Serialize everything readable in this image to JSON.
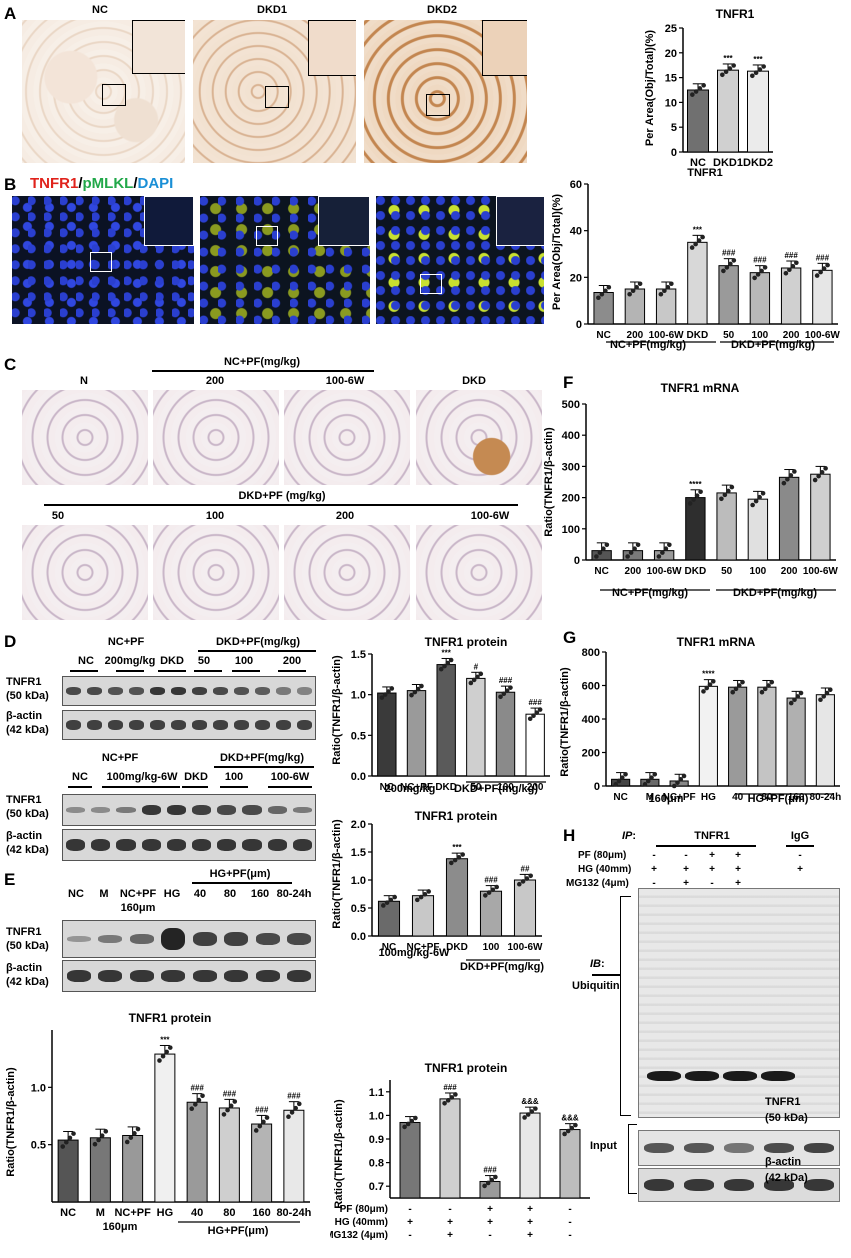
{
  "panels": {
    "A": {
      "letter": "A",
      "image_labels": [
        "NC",
        "DKD1",
        "DKD2"
      ],
      "chart_data": {
        "type": "bar",
        "title": "TNFR1",
        "ylabel": "Per Area(Obj/Total)(%)",
        "categories": [
          "NC",
          "DKD1",
          "DKD2"
        ],
        "values": [
          12.5,
          16.5,
          16.3
        ],
        "ylim": [
          0,
          25
        ],
        "yticks": [
          0,
          5,
          10,
          15,
          20,
          25
        ],
        "significance": [
          "",
          "***",
          "***"
        ],
        "bar_colors": [
          "#707070",
          "#d0d0d0",
          "#ebebeb"
        ],
        "x_group_label": "TNFR1"
      }
    },
    "B": {
      "letter": "B",
      "stain_title": {
        "tnfr1": "TNFR1",
        "sep1": "/",
        "pmlkl": "pMLKL",
        "sep2": "/",
        "dapi": "DAPI"
      },
      "colors": {
        "tnfr1": "#e0231c",
        "pmlkl": "#22a84a",
        "dapi": "#1a8fd6"
      },
      "chart_data": {
        "type": "bar",
        "ylabel": "Per Area(Obj/Total)(%)",
        "categories": [
          "NC",
          "200",
          "100-6W",
          "DKD",
          "50",
          "100",
          "200",
          "100-6W"
        ],
        "values": [
          13.5,
          15,
          15,
          35,
          25,
          22,
          24,
          23
        ],
        "ylim": [
          0,
          60
        ],
        "yticks": [
          0,
          20,
          40,
          60
        ],
        "significance": [
          "",
          "",
          "",
          "***",
          "###",
          "###",
          "###",
          "###"
        ],
        "bar_colors": [
          "#8c8c8c",
          "#b4b4b4",
          "#c8c8c8",
          "#d8d8d8",
          "#9a9a9a",
          "#b8b8b8",
          "#d0d0d0",
          "#e6e6e6"
        ],
        "group_labels": [
          "NC+PF(mg/kg)",
          "DKD+PF(mg/kg)"
        ]
      }
    },
    "C": {
      "letter": "C",
      "header_top": "NC+PF(mg/kg)",
      "row1_labels": [
        "N",
        "200",
        "100-6W",
        "DKD"
      ],
      "header_bottom": "DKD+PF (mg/kg)",
      "row2_labels": [
        "50",
        "100",
        "200",
        "100-6W"
      ]
    },
    "F": {
      "letter": "F",
      "chart_data": {
        "type": "bar",
        "title": "TNFR1 mRNA",
        "ylabel": "Ratio(TNFR1/β-actin)",
        "categories": [
          "NC",
          "200",
          "100-6W",
          "DKD",
          "50",
          "100",
          "200",
          "100-6W"
        ],
        "values": [
          30,
          30,
          30,
          200,
          215,
          195,
          265,
          275
        ],
        "ylim": [
          0,
          500
        ],
        "yticks": [
          0,
          100,
          200,
          300,
          400,
          500
        ],
        "significance": [
          "",
          "",
          "",
          "****",
          "",
          "",
          "",
          ""
        ],
        "bar_colors": [
          "#555555",
          "#7a7a7a",
          "#9a9a9a",
          "#2e2e2e",
          "#bcbcbc",
          "#e0e0e0",
          "#8a8a8a",
          "#cfcfcf"
        ],
        "group_labels": [
          "NC+PF(mg/kg)",
          "DKD+PF(mg/kg)"
        ]
      }
    },
    "D": {
      "letter": "D",
      "blot1": {
        "header_top": [
          "NC+PF",
          "DKD+PF(mg/kg)"
        ],
        "lane_labels": [
          "NC",
          "200mg/kg",
          "DKD",
          "50",
          "100",
          "200"
        ],
        "rows": [
          {
            "name": "TNFR1",
            "kda": "(50 kDa)"
          },
          {
            "name": "β-actin",
            "kda": "(42 kDa)"
          }
        ]
      },
      "blot2": {
        "header_top": [
          "NC+PF",
          "DKD+PF(mg/kg)"
        ],
        "lane_labels": [
          "NC",
          "100mg/kg-6W",
          "DKD",
          "100",
          "100-6W"
        ],
        "rows": [
          {
            "name": "TNFR1",
            "kda": "(50 kDa)"
          },
          {
            "name": "β-actin",
            "kda": "(42 kDa)"
          }
        ]
      },
      "chart1": {
        "type": "bar",
        "title": "TNFR1 protein",
        "ylabel": "Ratio(TNFR1/β-actin)",
        "categories": [
          "NC",
          "NC+PF",
          "DKD",
          "50",
          "100",
          "200"
        ],
        "sub_label": "200mg/kg",
        "group_label": "DKD+PF(mg/kg)",
        "values": [
          1.02,
          1.05,
          1.37,
          1.2,
          1.03,
          0.76
        ],
        "ylim": [
          0,
          1.5
        ],
        "yticks": [
          0.0,
          0.5,
          1.0,
          1.5
        ],
        "significance": [
          "",
          "",
          "***",
          "#",
          "###",
          "###"
        ],
        "bar_colors": [
          "#3a3a3a",
          "#9a9a9a",
          "#5a5a5a",
          "#cfcfcf",
          "#8a8a8a",
          "#ffffff"
        ]
      },
      "chart2": {
        "type": "bar",
        "title": "TNFR1 protein",
        "ylabel": "Ratio(TNFR1/β-actin)",
        "categories": [
          "NC",
          "NC+PF",
          "DKD",
          "100",
          "100-6W"
        ],
        "sub_label": "100mg/kg-6W",
        "group_label": "DKD+PF(mg/kg)",
        "values": [
          0.62,
          0.72,
          1.38,
          0.8,
          1.0
        ],
        "ylim": [
          0,
          2.0
        ],
        "yticks": [
          0.0,
          0.5,
          1.0,
          1.5,
          2.0
        ],
        "significance": [
          "",
          "",
          "***",
          "###",
          "##"
        ],
        "bar_colors": [
          "#6a6a6a",
          "#c8c8c8",
          "#8c8c8c",
          "#a8a8a8",
          "#c8c8c8"
        ]
      }
    },
    "G": {
      "letter": "G",
      "chart_data": {
        "type": "bar",
        "title": "TNFR1 mRNA",
        "ylabel": "Ratio(TNFR1/β-actin)",
        "categories": [
          "NC",
          "M",
          "NC+PF",
          "HG",
          "40",
          "80",
          "160",
          "80-24h"
        ],
        "sub_label": "160μm",
        "group_label": "HG+PF(μm)",
        "values": [
          40,
          40,
          30,
          595,
          590,
          590,
          525,
          545
        ],
        "ylim": [
          0,
          800
        ],
        "yticks": [
          0,
          200,
          400,
          600,
          800
        ],
        "significance": [
          "",
          "",
          "",
          "****",
          "",
          "",
          "",
          ""
        ],
        "bar_colors": [
          "#444444",
          "#6a6a6a",
          "#888888",
          "#f2f2f2",
          "#9a9a9a",
          "#c4c4c4",
          "#b0b0b0",
          "#e6e6e6"
        ]
      }
    },
    "E": {
      "letter": "E",
      "blot": {
        "lane_labels": [
          "NC",
          "M",
          "NC+PF",
          "HG",
          "40",
          "80",
          "160",
          "80-24h"
        ],
        "sub_label": "160μm",
        "group_label": "HG+PF(μm)",
        "rows": [
          {
            "name": "TNFR1",
            "kda": "(50 kDa)"
          },
          {
            "name": "β-actin",
            "kda": "(42 kDa)"
          }
        ]
      },
      "chart_data": {
        "type": "bar",
        "title": "TNFR1 protein",
        "ylabel": "Ratio(TNFR1/β-actin)",
        "categories": [
          "NC",
          "M",
          "NC+PF",
          "HG",
          "40",
          "80",
          "160",
          "80-24h"
        ],
        "sub_label": "160μm",
        "group_label": "HG+PF(μm)",
        "values": [
          0.54,
          0.56,
          0.58,
          1.29,
          0.87,
          0.82,
          0.68,
          0.8
        ],
        "ylim": [
          0,
          1.5
        ],
        "yticks": [
          0.5,
          1.0
        ],
        "significance": [
          "",
          "",
          "",
          "***",
          "###",
          "###",
          "###",
          "###"
        ],
        "bar_colors": [
          "#555555",
          "#777777",
          "#999999",
          "#f0f0f0",
          "#9a9a9a",
          "#cfcfcf",
          "#b4b4b4",
          "#e8e8e8"
        ]
      }
    },
    "H": {
      "letter": "H",
      "ip_label": "IP",
      "ip_colon": ":",
      "ip_target": "TNFR1",
      "igg": "IgG",
      "treatments": [
        {
          "name": "PF (80μm)",
          "signs": [
            "-",
            "-",
            "+",
            "+",
            "-"
          ]
        },
        {
          "name": "HG (40mm)",
          "signs": [
            "+",
            "+",
            "+",
            "+",
            "+"
          ]
        },
        {
          "name": "MG132 (4μm)",
          "signs": [
            "-",
            "+",
            "-",
            "+",
            ""
          ]
        }
      ],
      "ib_label": "IB",
      "ib_colon": ":",
      "ib_target": "Ubiquitin",
      "side_tnfr1": "TNFR1",
      "side_kda1": "(50 kDa)",
      "input_label": "Input",
      "side_actin": "β-actin",
      "side_kda2": "(42 kDa)",
      "chart_data": {
        "type": "bar",
        "title": "TNFR1 protein",
        "ylabel": "Ratio(TNFR1/β-actin)",
        "categories": [
          "1",
          "2",
          "3",
          "4",
          "5"
        ],
        "values": [
          0.97,
          1.07,
          0.72,
          1.01,
          0.94
        ],
        "ylim": [
          0.65,
          1.15
        ],
        "yticks": [
          0.7,
          0.8,
          0.9,
          1.0,
          1.1
        ],
        "significance": [
          "",
          "###",
          "###",
          "&&&",
          "&&&"
        ],
        "bar_colors": [
          "#777777",
          "#cfcfcf",
          "#9a9a9a",
          "#e8e8e8",
          "#bdbdbd"
        ],
        "treatments": [
          {
            "name": "PF (80μm)",
            "signs": [
              "-",
              "-",
              "+",
              "+",
              "-"
            ]
          },
          {
            "name": "HG (40mm)",
            "signs": [
              "+",
              "+",
              "+",
              "+",
              "-"
            ]
          },
          {
            "name": "MG132 (4μm)",
            "signs": [
              "-",
              "+",
              "-",
              "+",
              "-"
            ]
          }
        ]
      }
    }
  }
}
